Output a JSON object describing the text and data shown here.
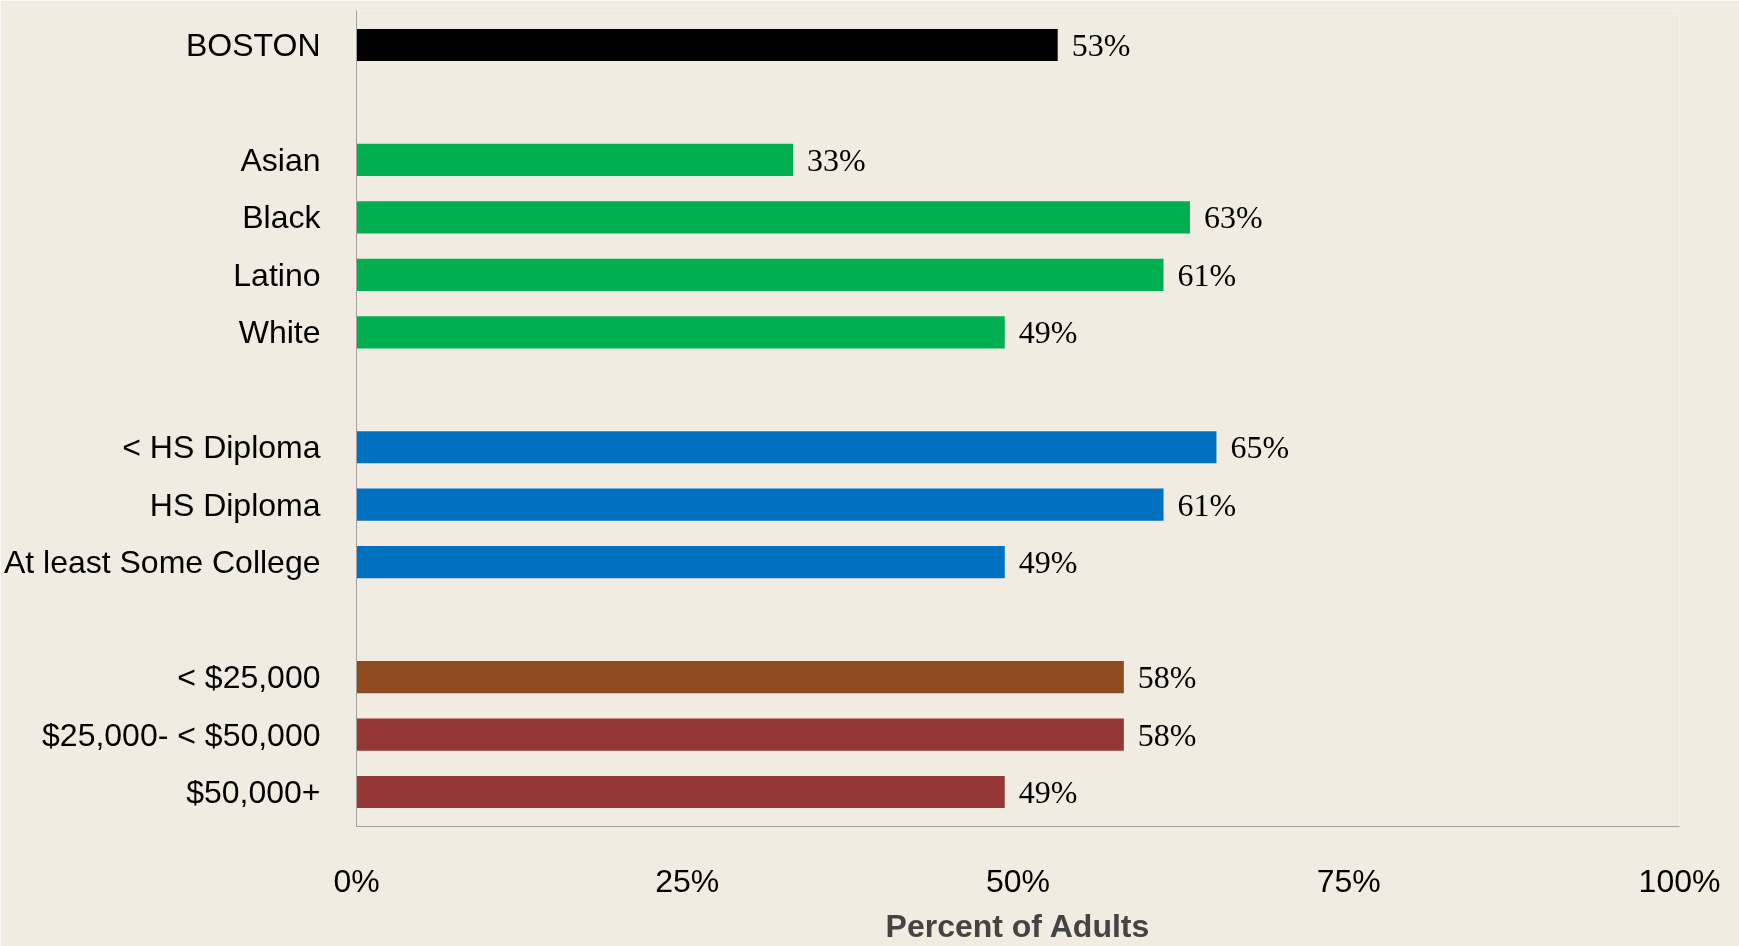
{
  "chart_data": {
    "type": "bar",
    "orientation": "horizontal",
    "xlabel": "Percent of Adults",
    "categories": [
      "BOSTON",
      null,
      "Asian",
      "Black",
      "Latino",
      "White",
      null,
      "< HS Diploma",
      "HS Diploma",
      "At least Some College",
      null,
      "< $25,000",
      "$25,000- < $50,000",
      "$50,000+"
    ],
    "values": [
      53,
      null,
      33,
      63,
      61,
      49,
      null,
      65,
      61,
      49,
      null,
      58,
      58,
      49
    ],
    "value_labels": [
      "53%",
      null,
      "33%",
      "63%",
      "61%",
      "49%",
      null,
      "65%",
      "61%",
      "49%",
      null,
      "58%",
      "58%",
      "49%"
    ],
    "colors": [
      "#000000",
      null,
      "#00b050",
      "#00b050",
      "#00b050",
      "#00b050",
      null,
      "#0070c0",
      "#0070c0",
      "#0070c0",
      null,
      "#904a20",
      "#953735",
      "#953735"
    ],
    "xlim": [
      0,
      100
    ],
    "xticks": [
      {
        "value": 0,
        "label": "0%"
      },
      {
        "value": 25,
        "label": "25%"
      },
      {
        "value": 50,
        "label": "50%"
      },
      {
        "value": 75,
        "label": "75%"
      },
      {
        "value": 100,
        "label": "100%"
      }
    ],
    "grid": false
  }
}
